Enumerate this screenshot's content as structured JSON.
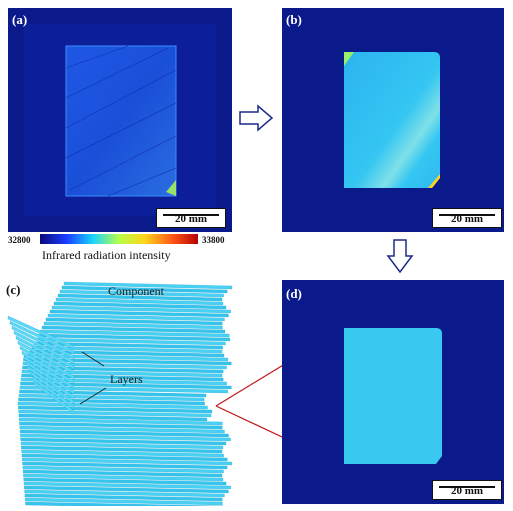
{
  "panels": {
    "a": {
      "label": "(a)",
      "scale": "20 mm"
    },
    "b": {
      "label": "(b)",
      "scale": "20 mm"
    },
    "c": {
      "label": "(c)",
      "component": "Component",
      "layers": "Layers"
    },
    "d": {
      "label": "(d)",
      "scale": "20 mm"
    }
  },
  "colorbar": {
    "min": "32800",
    "max": "33800",
    "title": "Infrared radiation intensity",
    "colors": [
      "#0a0a7a",
      "#1a3cff",
      "#19d3ff",
      "#b6ff4a",
      "#ffd41a",
      "#ff5a1a",
      "#b80000"
    ]
  },
  "colors": {
    "background": "#0b1a8a",
    "cyan": "#39c9f0",
    "connector": "#c01818"
  }
}
